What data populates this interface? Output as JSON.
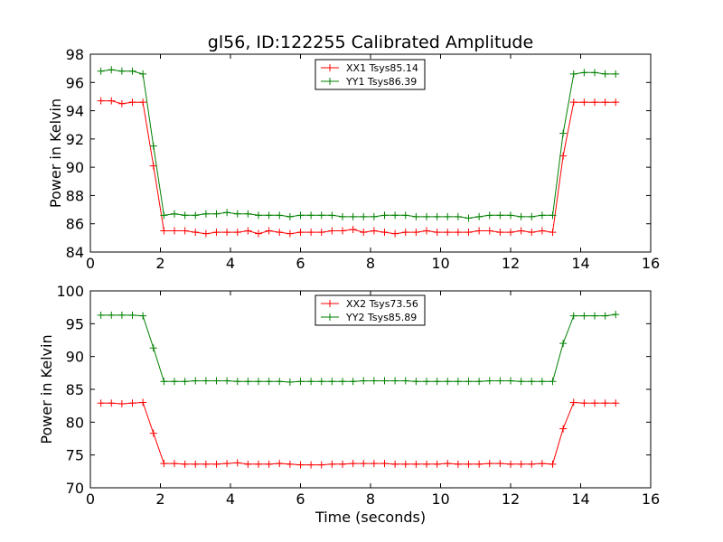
{
  "figure": {
    "title": "gl56, ID:122255 Calibrated Amplitude",
    "xlabel": "Time (seconds)"
  },
  "chart_data": [
    {
      "type": "line",
      "title": "gl56, ID:122255 Calibrated Amplitude",
      "xlabel": "",
      "ylabel": "Power in Kelvin",
      "xlim": [
        0,
        16
      ],
      "ylim": [
        84,
        98
      ],
      "xticks": [
        0,
        2,
        4,
        6,
        8,
        10,
        12,
        14,
        16
      ],
      "yticks": [
        84,
        86,
        88,
        90,
        92,
        94,
        96,
        98
      ],
      "grid": false,
      "legend_position": "top-center",
      "x": [
        0.3,
        0.6,
        0.9,
        1.2,
        1.5,
        1.8,
        2.1,
        2.4,
        2.7,
        3.0,
        3.3,
        3.6,
        3.9,
        4.2,
        4.5,
        4.8,
        5.1,
        5.4,
        5.7,
        6.0,
        6.3,
        6.6,
        6.9,
        7.2,
        7.5,
        7.8,
        8.1,
        8.4,
        8.7,
        9.0,
        9.3,
        9.6,
        9.9,
        10.2,
        10.5,
        10.8,
        11.1,
        11.4,
        11.7,
        12.0,
        12.3,
        12.6,
        12.9,
        13.2,
        13.5,
        13.8,
        14.1,
        14.4,
        14.7,
        15.0
      ],
      "series": [
        {
          "name": "XX1 Tsys85.14",
          "color": "#ff0000",
          "values": [
            94.7,
            94.7,
            94.5,
            94.6,
            94.6,
            90.1,
            85.5,
            85.5,
            85.5,
            85.4,
            85.3,
            85.4,
            85.4,
            85.4,
            85.5,
            85.3,
            85.5,
            85.4,
            85.3,
            85.4,
            85.4,
            85.4,
            85.5,
            85.5,
            85.6,
            85.4,
            85.5,
            85.4,
            85.3,
            85.4,
            85.4,
            85.5,
            85.4,
            85.4,
            85.4,
            85.4,
            85.5,
            85.5,
            85.4,
            85.4,
            85.5,
            85.4,
            85.5,
            85.4,
            90.8,
            94.6,
            94.6,
            94.6,
            94.6,
            94.6
          ]
        },
        {
          "name": "YY1 Tsys86.39",
          "color": "#008000",
          "values": [
            96.8,
            96.9,
            96.8,
            96.8,
            96.6,
            91.5,
            86.6,
            86.7,
            86.6,
            86.6,
            86.7,
            86.7,
            86.8,
            86.7,
            86.7,
            86.6,
            86.6,
            86.6,
            86.5,
            86.6,
            86.6,
            86.6,
            86.6,
            86.5,
            86.5,
            86.5,
            86.5,
            86.6,
            86.6,
            86.6,
            86.5,
            86.5,
            86.5,
            86.5,
            86.5,
            86.4,
            86.5,
            86.6,
            86.6,
            86.6,
            86.5,
            86.5,
            86.6,
            86.6,
            92.4,
            96.6,
            96.7,
            96.7,
            96.6,
            96.6
          ]
        }
      ]
    },
    {
      "type": "line",
      "title": "",
      "xlabel": "Time (seconds)",
      "ylabel": "Power in Kelvin",
      "xlim": [
        0,
        16
      ],
      "ylim": [
        70,
        100
      ],
      "xticks": [
        0,
        2,
        4,
        6,
        8,
        10,
        12,
        14,
        16
      ],
      "yticks": [
        70,
        75,
        80,
        85,
        90,
        95,
        100
      ],
      "grid": false,
      "legend_position": "top-center",
      "x": [
        0.3,
        0.6,
        0.9,
        1.2,
        1.5,
        1.8,
        2.1,
        2.4,
        2.7,
        3.0,
        3.3,
        3.6,
        3.9,
        4.2,
        4.5,
        4.8,
        5.1,
        5.4,
        5.7,
        6.0,
        6.3,
        6.6,
        6.9,
        7.2,
        7.5,
        7.8,
        8.1,
        8.4,
        8.7,
        9.0,
        9.3,
        9.6,
        9.9,
        10.2,
        10.5,
        10.8,
        11.1,
        11.4,
        11.7,
        12.0,
        12.3,
        12.6,
        12.9,
        13.2,
        13.5,
        13.8,
        14.1,
        14.4,
        14.7,
        15.0
      ],
      "series": [
        {
          "name": "XX2 Tsys73.56",
          "color": "#ff0000",
          "values": [
            82.9,
            82.9,
            82.8,
            82.9,
            83.0,
            78.3,
            73.7,
            73.7,
            73.6,
            73.6,
            73.6,
            73.6,
            73.7,
            73.8,
            73.6,
            73.6,
            73.6,
            73.7,
            73.6,
            73.5,
            73.5,
            73.5,
            73.6,
            73.6,
            73.7,
            73.7,
            73.7,
            73.7,
            73.6,
            73.6,
            73.6,
            73.6,
            73.6,
            73.7,
            73.6,
            73.6,
            73.6,
            73.7,
            73.7,
            73.6,
            73.6,
            73.6,
            73.7,
            73.6,
            79.0,
            83.0,
            82.9,
            82.9,
            82.9,
            82.9
          ]
        },
        {
          "name": "YY2 Tsys85.89",
          "color": "#008000",
          "values": [
            96.3,
            96.3,
            96.3,
            96.3,
            96.2,
            91.3,
            86.2,
            86.2,
            86.2,
            86.3,
            86.3,
            86.3,
            86.3,
            86.2,
            86.2,
            86.2,
            86.2,
            86.2,
            86.1,
            86.2,
            86.2,
            86.2,
            86.2,
            86.2,
            86.2,
            86.3,
            86.3,
            86.3,
            86.3,
            86.3,
            86.2,
            86.2,
            86.2,
            86.2,
            86.2,
            86.2,
            86.2,
            86.3,
            86.3,
            86.3,
            86.2,
            86.2,
            86.2,
            86.2,
            92.0,
            96.2,
            96.2,
            96.2,
            96.2,
            96.4
          ]
        }
      ]
    }
  ]
}
